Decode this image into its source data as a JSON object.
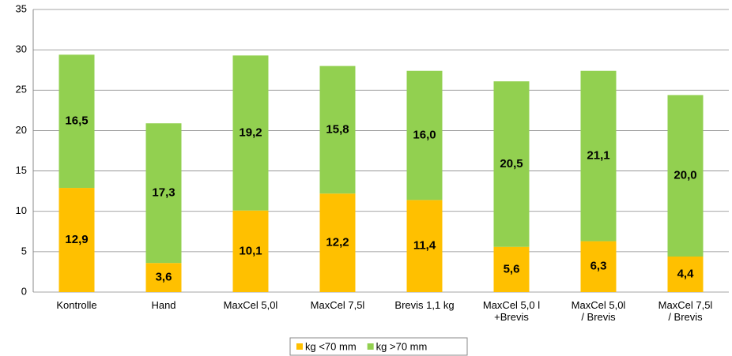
{
  "chart_data": {
    "type": "stacked_bar",
    "categories": [
      "Kontrolle",
      "Hand",
      "MaxCel 5,0l",
      "MaxCel 7,5l",
      "Brevis 1,1 kg",
      "MaxCel 5,0 l\n+Brevis",
      "MaxCel 5,0l\n/ Brevis",
      "MaxCel 7,5l\n/ Brevis"
    ],
    "series": [
      {
        "name": "kg <70 mm",
        "color": "#ffc000",
        "values": [
          12.9,
          3.6,
          10.1,
          12.2,
          11.4,
          5.6,
          6.3,
          4.4
        ],
        "value_labels": [
          "12,9",
          "3,6",
          "10,1",
          "12,2",
          "11,4",
          "5,6",
          "6,3",
          "4,4"
        ]
      },
      {
        "name": "kg >70 mm",
        "color": "#92d050",
        "values": [
          16.5,
          17.3,
          19.2,
          15.8,
          16.0,
          20.5,
          21.1,
          20.0
        ],
        "value_labels": [
          "16,5",
          "17,3",
          "19,2",
          "15,8",
          "16,0",
          "20,5",
          "21,1",
          "20,0"
        ]
      }
    ],
    "ylim": [
      0,
      35
    ],
    "yticks": [
      0,
      5,
      10,
      15,
      20,
      25,
      30,
      35
    ],
    "grid": true,
    "legend": "bottom"
  }
}
